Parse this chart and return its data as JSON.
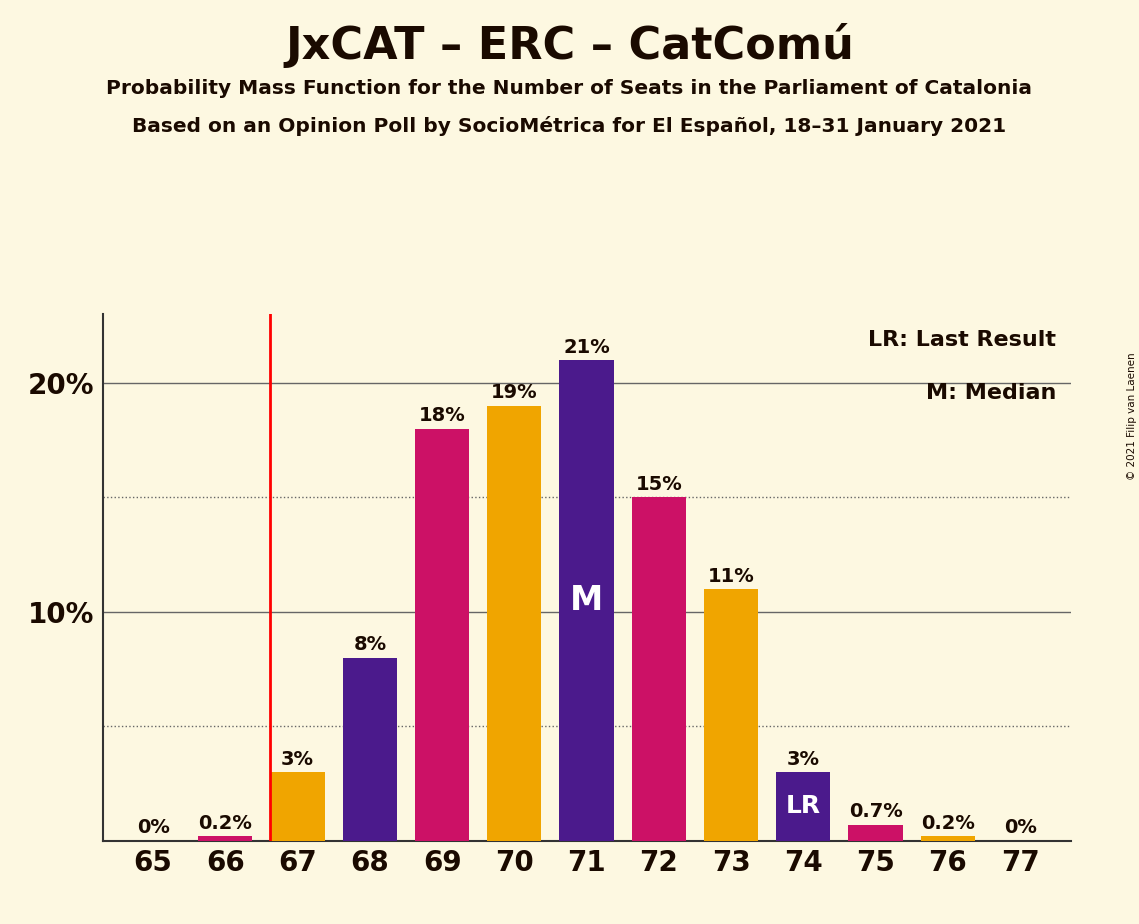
{
  "title": "JxCAT – ERC – CatComú",
  "subtitle1": "Probability Mass Function for the Number of Seats in the Parliament of Catalonia",
  "subtitle2": "Based on an Opinion Poll by SocioMétrica for El Español, 18–31 January 2021",
  "copyright": "© 2021 Filip van Laenen",
  "seats": [
    65,
    66,
    67,
    68,
    69,
    70,
    71,
    72,
    73,
    74,
    75,
    76,
    77
  ],
  "probabilities": [
    0.0,
    0.2,
    3.0,
    8.0,
    18.0,
    19.0,
    21.0,
    15.0,
    11.0,
    3.0,
    0.7,
    0.2,
    0.0
  ],
  "bar_colors": [
    "#cc1166",
    "#cc1166",
    "#f0a500",
    "#4b1a8c",
    "#cc1166",
    "#f0a500",
    "#4b1a8c",
    "#cc1166",
    "#f0a500",
    "#4b1a8c",
    "#cc1166",
    "#f0a500",
    "#f0a500"
  ],
  "prob_labels": [
    "0%",
    "0.2%",
    "3%",
    "8%",
    "18%",
    "19%",
    "21%",
    "15%",
    "11%",
    "3%",
    "0.7%",
    "0.2%",
    "0%"
  ],
  "median_seat": 71,
  "lr_seat": 74,
  "last_result_line_seat": 67,
  "background_color": "#fdf8e1",
  "grid_color": "#666666",
  "ylim": [
    0,
    23
  ],
  "yticks": [
    10,
    20
  ],
  "ytick_labels": [
    "10%",
    "20%"
  ],
  "dotted_yticks": [
    5,
    15
  ],
  "bar_width": 0.75,
  "label_color_dark": "#1a0a00",
  "label_color_white": "#ffffff",
  "title_color": "#1a0a00",
  "spine_color": "#333333",
  "label_fontsize": 14,
  "ytick_fontsize": 20,
  "xtick_fontsize": 20
}
